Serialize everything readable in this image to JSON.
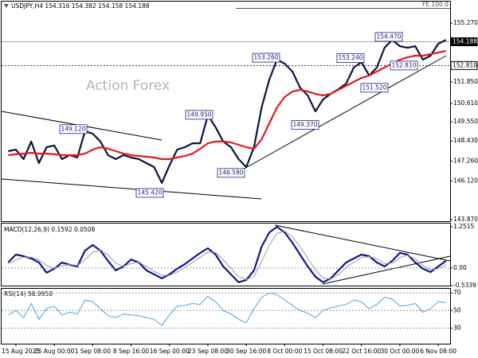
{
  "watermark": "Action Forex",
  "chart_data": [
    {
      "type": "line",
      "title": "USDJPY,H4 154.316 154.382 154.158 154.188",
      "level_label": "FE 100.0",
      "categories": [
        null,
        "15 Aug 2025",
        null,
        null,
        null,
        null,
        "25 Aug 00:00",
        null,
        null,
        null,
        null,
        "1 Sep 08:00",
        null,
        null,
        null,
        null,
        "8 Sep 16:00",
        null,
        null,
        null,
        null,
        "16 Sep 00:00",
        null,
        null,
        null,
        null,
        "23 Sep 08:00",
        null,
        null,
        null,
        null,
        "30 Sep 16:00",
        null,
        null,
        null,
        null,
        "8 Oct 00:00",
        null,
        null,
        null,
        null,
        "15 Oct 08:00",
        null,
        null,
        null,
        null,
        "22 Oct 16:00",
        null,
        null,
        null,
        null,
        "30 Oct 00:00",
        null,
        null,
        null,
        null,
        "6 Nov 08:00",
        null
      ],
      "series": [
        {
          "color": "#0d1440",
          "values": [
            147.84,
            147.93,
            147.38,
            148.4,
            147.15,
            148.07,
            148.17,
            147.38,
            147.61,
            147.47,
            149.0,
            148.86,
            148.4,
            147.61,
            147.38,
            147.61,
            147.47,
            147.38,
            147.15,
            146.92,
            146.0,
            147.01,
            147.93,
            148.07,
            148.3,
            148.3,
            149.92,
            149.23,
            148.4,
            148.07,
            147.38,
            146.92,
            148.07,
            150.38,
            152.0,
            153.15,
            152.92,
            152.46,
            151.53,
            151.07,
            150.15,
            150.84,
            151.17,
            151.44,
            151.76,
            152.69,
            153.01,
            152.23,
            152.69,
            153.84,
            154.3,
            153.93,
            153.84,
            153.93,
            153.15,
            153.38,
            154.07,
            154.3
          ]
        },
        {
          "color": "#e31b1b",
          "values": [
            147.61,
            147.66,
            147.7,
            147.75,
            147.7,
            147.7,
            147.66,
            147.61,
            147.61,
            147.61,
            147.7,
            147.93,
            148.07,
            147.98,
            147.84,
            147.7,
            147.61,
            147.56,
            147.52,
            147.47,
            147.38,
            147.38,
            147.47,
            147.56,
            147.7,
            147.98,
            148.3,
            148.4,
            148.4,
            148.35,
            148.21,
            148.07,
            147.98,
            148.53,
            149.46,
            150.38,
            150.98,
            151.3,
            151.4,
            151.3,
            151.17,
            151.07,
            151.17,
            151.4,
            151.63,
            151.86,
            152.09,
            152.23,
            152.46,
            152.69,
            152.92,
            153.15,
            153.29,
            153.38,
            153.38,
            153.47,
            153.56,
            153.66
          ]
        }
      ],
      "ylim": [
        143.78,
        156.61
      ],
      "yticks": [
        {
          "value": 155.27,
          "label": "155.270"
        },
        {
          "value": 151.85,
          "label": "151.850"
        },
        {
          "value": 150.61,
          "label": "150.610"
        },
        {
          "value": 149.55,
          "label": "149.550"
        },
        {
          "value": 148.43,
          "label": "148.430"
        },
        {
          "value": 147.26,
          "label": "147.260"
        },
        {
          "value": 146.12,
          "label": "146.120"
        },
        {
          "value": 143.87,
          "label": "143.870"
        }
      ],
      "price_labels": [
        {
          "value": 154.188,
          "label": "154.188"
        },
        {
          "value": 152.81,
          "label": "152.810"
        }
      ],
      "annotations": [
        {
          "value": 149.12,
          "label": "149.120"
        },
        {
          "value": 145.42,
          "label": "145.420"
        },
        {
          "value": 149.95,
          "label": "149.950"
        },
        {
          "value": 146.58,
          "label": "146.580"
        },
        {
          "value": 153.26,
          "label": "153.260"
        },
        {
          "value": 149.37,
          "label": "149.370"
        },
        {
          "value": 153.24,
          "label": "153.240"
        },
        {
          "value": 151.52,
          "label": "151.520"
        },
        {
          "value": 154.47,
          "label": "154.470"
        },
        {
          "value": 152.81,
          "label": "152.810"
        }
      ]
    },
    {
      "type": "line",
      "title": "MACD(12,26,9) 0.1592 0.0508",
      "series": [
        {
          "color": "#0d1a8c",
          "values": [
            0.17,
            0.41,
            0.36,
            0.29,
            0.17,
            -0.14,
            -0.02,
            0.17,
            0.1,
            0.05,
            0.53,
            0.7,
            0.53,
            0.22,
            -0.07,
            0.05,
            0.26,
            0.17,
            -0.07,
            -0.19,
            -0.31,
            -0.19,
            -0.02,
            0.12,
            0.29,
            0.46,
            0.6,
            0.41,
            0.05,
            -0.19,
            -0.43,
            -0.36,
            -0.07,
            0.65,
            1.08,
            1.25,
            1.08,
            0.77,
            0.41,
            0.05,
            -0.26,
            -0.43,
            -0.31,
            -0.07,
            0.17,
            0.29,
            0.41,
            0.36,
            0.17,
            0.05,
            0.22,
            0.46,
            0.41,
            0.17,
            -0.02,
            -0.12,
            0.05,
            0.22
          ]
        },
        {
          "color": "#9a9a9a",
          "values": [
            0.12,
            0.25,
            0.33,
            0.33,
            0.25,
            0.08,
            0.0,
            0.07,
            0.11,
            0.08,
            0.25,
            0.48,
            0.55,
            0.4,
            0.15,
            0.05,
            0.14,
            0.18,
            0.05,
            -0.1,
            -0.22,
            -0.22,
            -0.12,
            0.02,
            0.17,
            0.33,
            0.48,
            0.48,
            0.25,
            0.0,
            -0.25,
            -0.35,
            -0.25,
            0.2,
            0.7,
            1.05,
            1.12,
            0.95,
            0.65,
            0.3,
            -0.05,
            -0.3,
            -0.33,
            -0.2,
            0.02,
            0.18,
            0.32,
            0.35,
            0.28,
            0.14,
            0.15,
            0.32,
            0.39,
            0.28,
            0.08,
            -0.05,
            -0.02,
            0.1
          ]
        }
      ],
      "ylim": [
        -0.554,
        1.372
      ],
      "yticks": [
        1.2515,
        {
          "value": 0,
          "label": "0.00"
        },
        -0.5339
      ]
    },
    {
      "type": "line",
      "title": "RSI(14) 58.9950",
      "series": [
        {
          "color": "#4aa3e0",
          "values": [
            45,
            50,
            42,
            58,
            40,
            52,
            55,
            45,
            48,
            46,
            62,
            60,
            52,
            44,
            42,
            46,
            45,
            44,
            42,
            40,
            33,
            45,
            55,
            56,
            58,
            57,
            66,
            60,
            50,
            46,
            40,
            36,
            52,
            65,
            70,
            68,
            62,
            56,
            50,
            47,
            42,
            50,
            53,
            55,
            57,
            62,
            60,
            52,
            57,
            65,
            63,
            55,
            56,
            58,
            48,
            52,
            60,
            59
          ]
        }
      ],
      "ylim": [
        12.3,
        75.6
      ],
      "yticks": [
        70,
        50,
        30
      ],
      "grid": true
    }
  ]
}
